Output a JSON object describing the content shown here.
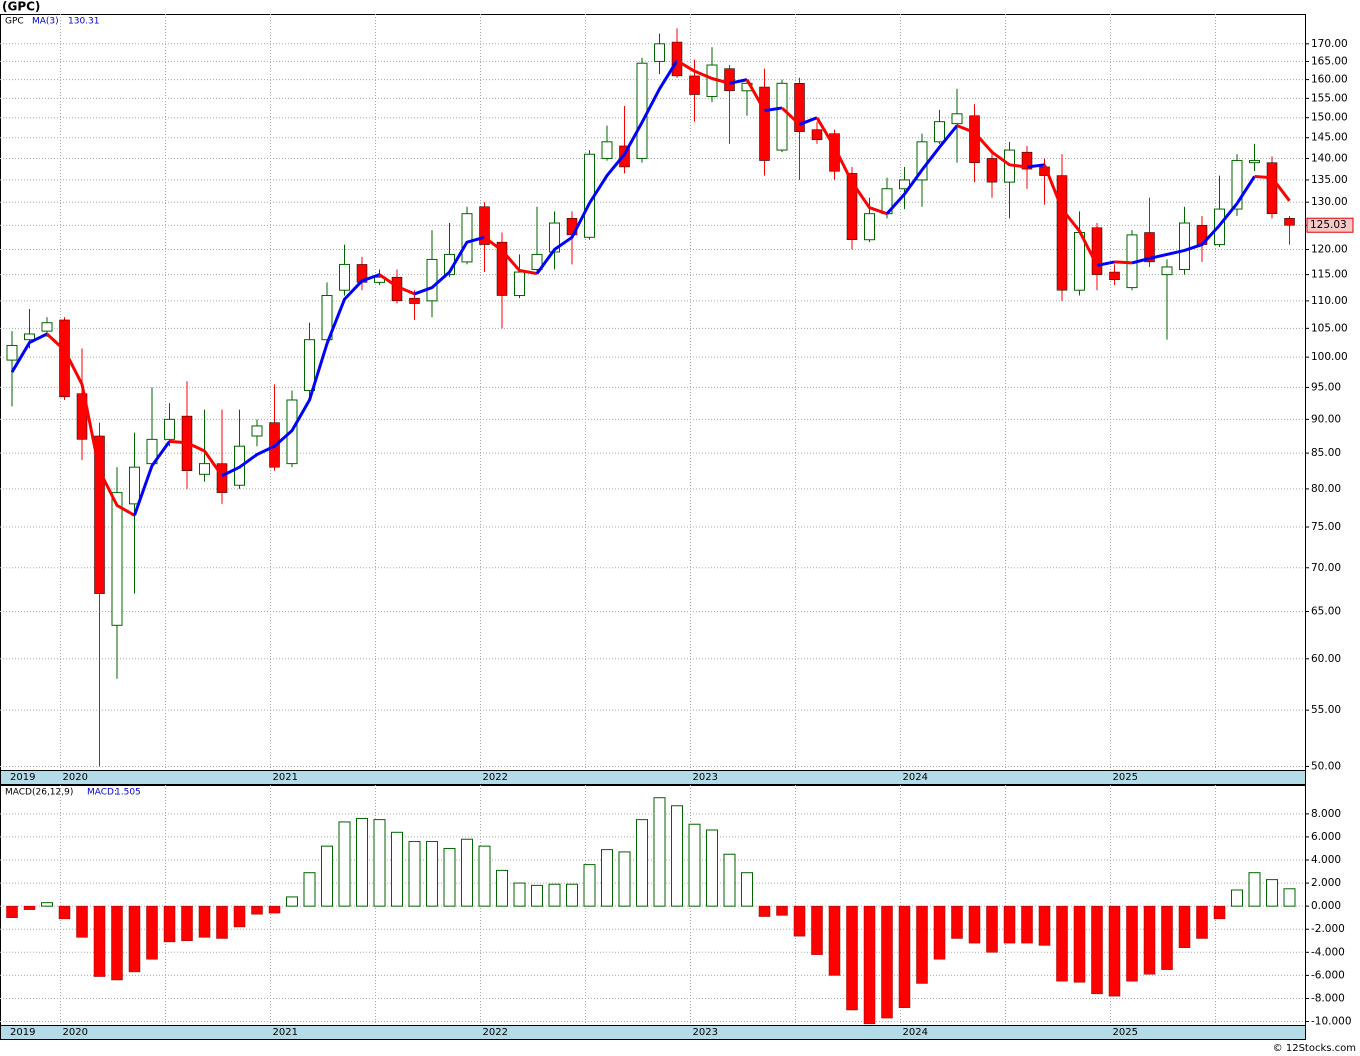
{
  "chart_data": [
    {
      "type": "candlestick",
      "title": "(GPC)",
      "symbol": "GPC",
      "categories": [
        "2019",
        null,
        null,
        "2020",
        null,
        null,
        null,
        null,
        null,
        null,
        null,
        null,
        null,
        null,
        null,
        "2021",
        null,
        null,
        null,
        null,
        null,
        null,
        null,
        null,
        null,
        null,
        null,
        "2022",
        null,
        null,
        null,
        null,
        null,
        null,
        null,
        null,
        null,
        null,
        null,
        "2023",
        null,
        null,
        null,
        null,
        null,
        null,
        null,
        null,
        null,
        null,
        null,
        "2024",
        null,
        null,
        null,
        null,
        null,
        null,
        null,
        null,
        null,
        null,
        null,
        "2025",
        null,
        null,
        null,
        null,
        null,
        null,
        null,
        null,
        null,
        null
      ],
      "open": [
        99.5,
        103,
        104.5,
        106.5,
        94,
        87.5,
        63.5,
        78,
        83.5,
        87,
        90.5,
        82,
        83.5,
        80.5,
        87.5,
        89.5,
        83.5,
        94.5,
        103,
        112,
        117,
        113.5,
        114.5,
        110.5,
        110,
        115,
        117.5,
        129,
        121.5,
        111,
        116,
        119.5,
        126.5,
        122.5,
        140,
        143,
        140,
        165,
        170.5,
        161,
        155.5,
        163,
        157,
        158,
        142,
        159,
        147,
        146,
        136.5,
        122,
        127.5,
        133,
        135,
        144,
        148.5,
        150.5,
        140,
        134.5,
        141.5,
        138,
        136,
        112,
        124.5,
        115.5,
        112.5,
        123.5,
        115,
        116,
        125,
        121,
        128.5,
        139,
        139,
        126.5
      ],
      "high": [
        104.5,
        108.5,
        107,
        107,
        101.5,
        89.5,
        83,
        88,
        95,
        92.5,
        96,
        91.5,
        91.5,
        91.5,
        90,
        95.5,
        94.5,
        106,
        113.5,
        121,
        118.5,
        116,
        116,
        112,
        124,
        125.5,
        129,
        130,
        123.5,
        119,
        129,
        128,
        128,
        142,
        148,
        153,
        166,
        173,
        174.5,
        165.5,
        169,
        164,
        160,
        163,
        160,
        160.5,
        149,
        147,
        138,
        131,
        135.5,
        138,
        146,
        152,
        157.5,
        153.5,
        142,
        144,
        143,
        140,
        141,
        128,
        125.5,
        117,
        124,
        131,
        118,
        129,
        127,
        136,
        141,
        143.5,
        140.5,
        127
      ],
      "low": [
        92,
        101.5,
        103.5,
        93,
        84,
        50,
        58,
        67,
        83,
        86,
        80,
        81,
        78,
        80,
        86,
        82.5,
        83,
        93.5,
        102.5,
        111,
        112,
        113,
        109.5,
        106.5,
        107,
        114.5,
        117,
        115.5,
        105,
        110.5,
        115.5,
        116,
        117,
        122,
        139.5,
        136.5,
        139,
        161.5,
        160.5,
        149,
        154,
        143.5,
        150.5,
        136,
        141.5,
        135,
        143.5,
        135,
        120,
        121.5,
        126.5,
        128.5,
        129,
        143.5,
        139,
        134.5,
        131,
        126.5,
        133,
        129.5,
        110,
        111,
        112,
        113,
        112,
        116.5,
        103,
        115,
        117.5,
        120.5,
        127,
        137,
        126.5,
        121
      ],
      "close": [
        102,
        104,
        106,
        93.5,
        87,
        67,
        79.5,
        83,
        87,
        90,
        82.5,
        83.5,
        79.5,
        86,
        89,
        83,
        93,
        103,
        111,
        117,
        113.5,
        114.5,
        110,
        109.5,
        118,
        119,
        127.5,
        121,
        111,
        115.5,
        119,
        125.5,
        123,
        141,
        144,
        138,
        164.5,
        170,
        161,
        156,
        164,
        157,
        159,
        139.5,
        159,
        146.5,
        144.5,
        137,
        122,
        127.5,
        133,
        135,
        144,
        149,
        151,
        139,
        134.5,
        142,
        137.5,
        136,
        112,
        123.5,
        115,
        114,
        123,
        117.5,
        116.5,
        125.5,
        121,
        128.5,
        139.5,
        139.5,
        127.5,
        125.03
      ],
      "up_color": "#006400",
      "down_color": "#ff0000",
      "ma": {
        "name": "MA(3)",
        "rising_color": "#0000ff",
        "falling_color": "#ff0000",
        "values": [
          97.5,
          102.5,
          104,
          101.2,
          95.5,
          82.5,
          77.8,
          76.5,
          83.2,
          86.7,
          86.5,
          85.3,
          81.8,
          83,
          84.8,
          86,
          88.3,
          93,
          102.3,
          110.3,
          113.8,
          115,
          112.7,
          111.3,
          112.5,
          115.5,
          121.5,
          122.5,
          119.8,
          115.8,
          115.2,
          120,
          122.5,
          129.8,
          136,
          141,
          148.8,
          157.5,
          165.2,
          162.3,
          160.3,
          159,
          160,
          151.8,
          152.5,
          148.3,
          150,
          142.7,
          134.5,
          128.8,
          127.5,
          131.8,
          137.3,
          142.7,
          148,
          146.3,
          141.5,
          138.5,
          138,
          138.5,
          128.5,
          123.8,
          116.8,
          117.5,
          117.3,
          118.2,
          119,
          119.8,
          121,
          125,
          129.7,
          135.8,
          135.5,
          130.31
        ]
      },
      "log_scale": true,
      "ylim": [
        49.7,
        178.8
      ],
      "yticks": [
        {
          "value": 50,
          "label": "50.00"
        },
        {
          "value": 55,
          "label": "55.00"
        },
        {
          "value": 60,
          "label": "60.00"
        },
        {
          "value": 65,
          "label": "65.00"
        },
        {
          "value": 70,
          "label": "70.00"
        },
        {
          "value": 75,
          "label": "75.00"
        },
        {
          "value": 80,
          "label": "80.00"
        },
        {
          "value": 85,
          "label": "85.00"
        },
        {
          "value": 90,
          "label": "90.00"
        },
        {
          "value": 95,
          "label": "95.00"
        },
        {
          "value": 100,
          "label": "100.00"
        },
        {
          "value": 105,
          "label": "105.00"
        },
        {
          "value": 110,
          "label": "110.00"
        },
        {
          "value": 115,
          "label": "115.00"
        },
        {
          "value": 120,
          "label": "120.00"
        },
        {
          "value": 125,
          "label": "125.00"
        },
        {
          "value": 130,
          "label": "130.00"
        },
        {
          "value": 135,
          "label": "135.00"
        },
        {
          "value": 140,
          "label": "140.00"
        },
        {
          "value": 145,
          "label": "145.00"
        },
        {
          "value": 150,
          "label": "150.00"
        },
        {
          "value": 155,
          "label": "155.00"
        },
        {
          "value": 160,
          "label": "160.00"
        },
        {
          "value": 165,
          "label": "165.00"
        },
        {
          "value": 170,
          "label": "170.00"
        }
      ],
      "grid": true
    },
    {
      "type": "bar",
      "title": "MACD(26,12,9)",
      "categories": [
        "2019",
        null,
        null,
        "2020",
        null,
        null,
        null,
        null,
        null,
        null,
        null,
        null,
        null,
        null,
        null,
        "2021",
        null,
        null,
        null,
        null,
        null,
        null,
        null,
        null,
        null,
        null,
        null,
        "2022",
        null,
        null,
        null,
        null,
        null,
        null,
        null,
        null,
        null,
        null,
        null,
        "2023",
        null,
        null,
        null,
        null,
        null,
        null,
        null,
        null,
        null,
        null,
        null,
        "2024",
        null,
        null,
        null,
        null,
        null,
        null,
        null,
        null,
        null,
        null,
        null,
        "2025",
        null,
        null,
        null,
        null,
        null,
        null,
        null,
        null,
        null,
        null
      ],
      "series": [
        {
          "name": "MACD:",
          "pos_color": "#006400",
          "neg_color": "#ff0000",
          "values": [
            -1,
            -0.3,
            0.3,
            -1.1,
            -2.7,
            -6.1,
            -6.4,
            -5.7,
            -4.6,
            -3.1,
            -3,
            -2.7,
            -2.8,
            -1.8,
            -0.7,
            -0.6,
            0.8,
            2.9,
            5.2,
            7.3,
            7.6,
            7.5,
            6.4,
            5.6,
            5.6,
            5,
            5.8,
            5.2,
            3.1,
            2,
            1.8,
            1.9,
            1.9,
            3.6,
            4.9,
            4.7,
            7.5,
            9.4,
            8.7,
            7.1,
            6.6,
            4.5,
            2.9,
            -0.9,
            -0.8,
            -2.6,
            -4.2,
            -6,
            -9,
            -10.2,
            -9.7,
            -8.8,
            -6.7,
            -4.6,
            -2.8,
            -3.2,
            -4,
            -3.2,
            -3.2,
            -3.4,
            -6.5,
            -6.6,
            -7.6,
            -7.8,
            -6.5,
            -5.9,
            -5.5,
            -3.6,
            -2.8,
            -1.1,
            1.4,
            2.9,
            2.3,
            1.505
          ]
        }
      ],
      "ylim": [
        -10.3,
        10.5
      ],
      "yticks": [
        {
          "value": 8,
          "label": "8.000"
        },
        {
          "value": 6,
          "label": "6.000"
        },
        {
          "value": 4,
          "label": "4.000"
        },
        {
          "value": 2,
          "label": "2.000"
        },
        {
          "value": 0,
          "label": "0.000"
        },
        {
          "value": -2,
          "label": "-2.000"
        },
        {
          "value": -4,
          "label": "-4.000"
        },
        {
          "value": -6,
          "label": "-6.000"
        },
        {
          "value": -8,
          "label": "-8.000"
        },
        {
          "value": -10,
          "label": "-10.000"
        }
      ],
      "grid": true
    }
  ],
  "footer": "© 12Stocks.com"
}
